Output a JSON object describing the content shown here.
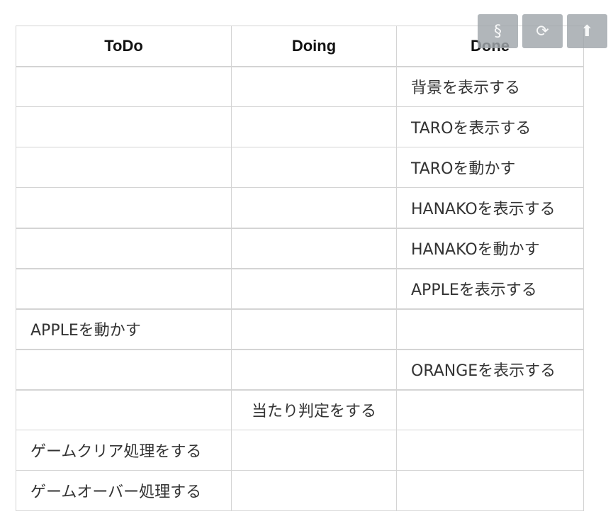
{
  "board": {
    "headers": [
      "ToDo",
      "Doing",
      "Done"
    ],
    "rows": [
      [
        "",
        "",
        "背景を表示する"
      ],
      [
        "",
        "",
        "TAROを表示する"
      ],
      [
        "",
        "",
        "TAROを動かす"
      ],
      [
        "",
        "",
        "HANAKOを表示する"
      ],
      [
        "",
        "",
        "HANAKOを動かす"
      ],
      [
        "",
        "",
        "APPLEを表示する"
      ],
      [
        "APPLEを動かす",
        "",
        ""
      ],
      [
        "",
        "",
        "ORANGEを表示する"
      ],
      [
        "",
        "当たり判定をする",
        ""
      ],
      [
        "ゲームクリア処理をする",
        "",
        ""
      ],
      [
        "ゲームオーバー処理する",
        "",
        ""
      ]
    ]
  },
  "toolbar": {
    "buttons": [
      {
        "icon": "section-icon",
        "glyph": "§"
      },
      {
        "icon": "refresh-icon",
        "glyph": "⟳"
      },
      {
        "icon": "up-arrow-icon",
        "glyph": "⬆"
      }
    ]
  }
}
